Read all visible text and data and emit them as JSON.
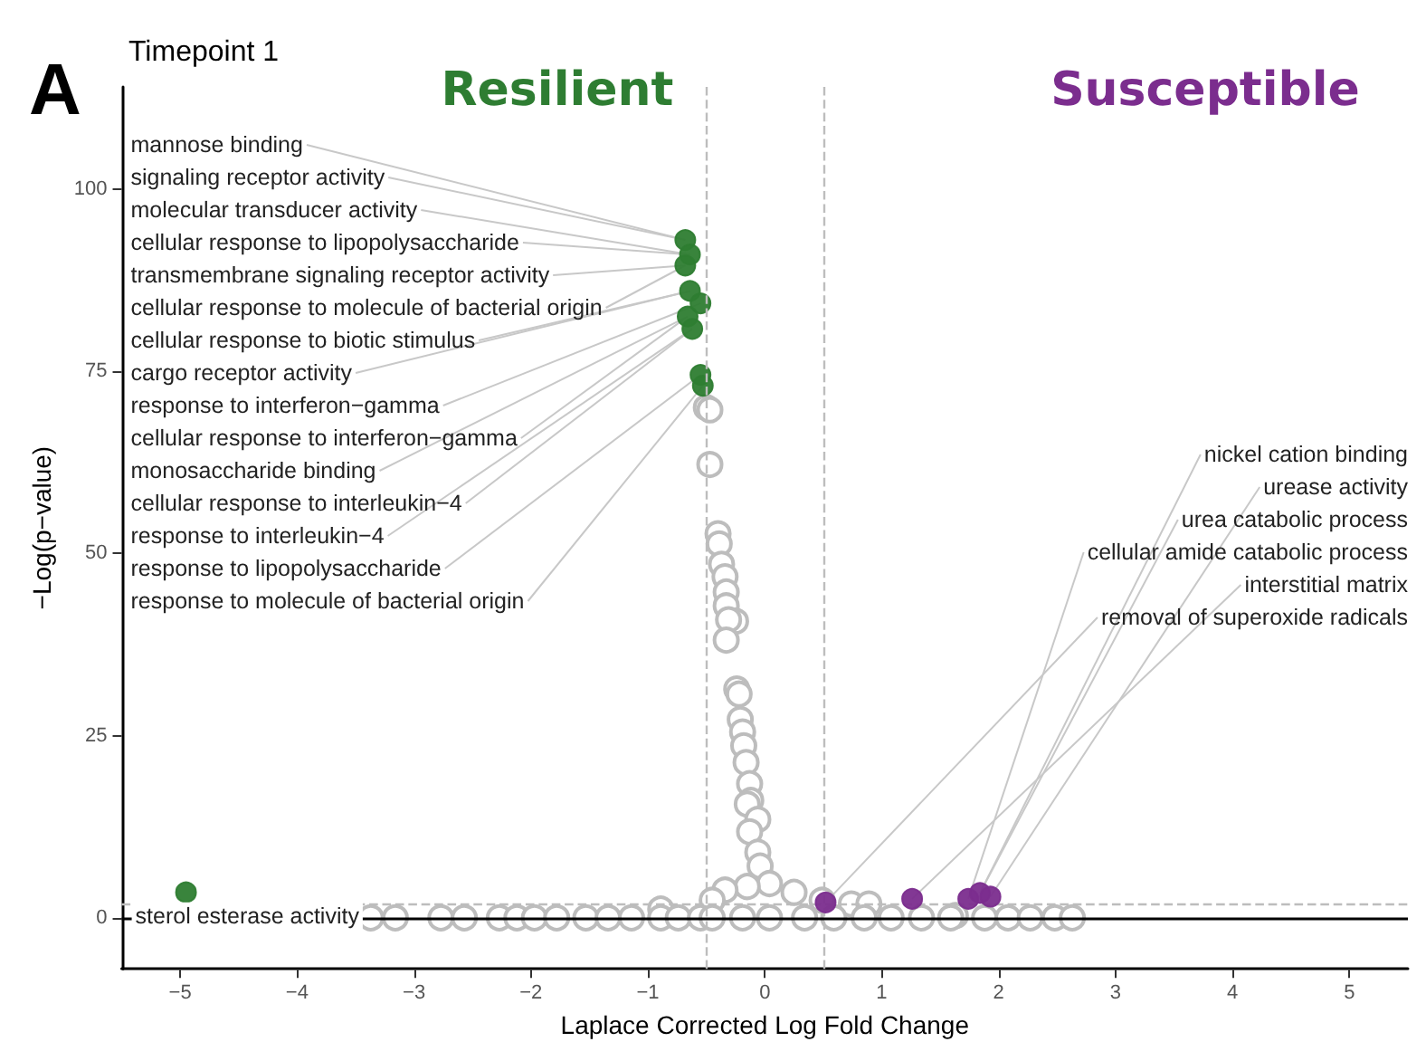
{
  "chart_data": {
    "type": "scatter",
    "title": "Timepoint 1",
    "xlabel": "Laplace Corrected Log Fold Change",
    "ylabel": "−Log(p−value)",
    "xlim": [
      -5.5,
      5.5
    ],
    "xticks": [
      -5,
      -4,
      -3,
      -2,
      -1,
      0,
      1,
      2,
      3,
      4,
      5
    ],
    "ylim": [
      -7,
      114
    ],
    "yticks": [
      0,
      25,
      50,
      75,
      100
    ],
    "grid": false,
    "legend": false,
    "marker": "circle",
    "series": [
      {
        "color": "#bdbdbd",
        "x": [
          -0.5,
          -0.47,
          -0.47,
          -0.4,
          -0.39,
          -0.37,
          -0.34,
          -0.33,
          -0.33,
          -0.25,
          -0.31,
          -0.33,
          -0.24,
          -0.22,
          -0.21,
          -0.19,
          -0.18,
          -0.16,
          -0.13,
          -0.12,
          -0.15,
          -0.06,
          -0.13,
          -0.06,
          -0.04,
          0.04,
          -0.15,
          -0.34,
          0.25,
          -0.45,
          0.49,
          -0.89,
          0.74,
          0.89,
          1.63,
          -3.37,
          -3.16,
          -2.77,
          -2.57,
          -2.27,
          -2.12,
          -1.97,
          -1.78,
          -1.53,
          -1.34,
          -1.14,
          -0.89,
          -0.74,
          -0.55,
          -0.45,
          -0.19,
          0.04,
          0.34,
          0.59,
          0.85,
          1.08,
          1.34,
          1.59,
          1.88,
          2.08,
          2.27,
          2.48,
          2.63
        ],
        "values": [
          70,
          69.7,
          62.2,
          52.7,
          51.3,
          48.5,
          46.8,
          44.7,
          42.8,
          40.7,
          40.9,
          38.1,
          31.4,
          30.7,
          27.2,
          25.5,
          23.6,
          21.3,
          18.4,
          16.1,
          15.6,
          13.5,
          11.8,
          9,
          7.1,
          4.7,
          4.3,
          3.8,
          3.5,
          2.4,
          2.4,
          1.2,
          1.9,
          1.9,
          0.3,
          0,
          0,
          0,
          0,
          0,
          0,
          0,
          0,
          0,
          0,
          0,
          0,
          0,
          0,
          0,
          0,
          0,
          0,
          0,
          0,
          0,
          0,
          0,
          0,
          0,
          0,
          0,
          0
        ]
      },
      {
        "name": "Resilient",
        "color": "#2e7d32",
        "x": [
          -0.68,
          -0.64,
          -0.68,
          -0.64,
          -0.55,
          -0.66,
          -0.62,
          -0.55,
          -0.53,
          -4.95
        ],
        "values": [
          93,
          91,
          89.5,
          86,
          84.3,
          82.5,
          80.8,
          74.5,
          73,
          3.5
        ]
      },
      {
        "name": "Susceptible",
        "color": "#7b2d8e",
        "x": [
          0.52,
          1.26,
          1.74,
          1.84,
          1.93
        ],
        "values": [
          2.1,
          2.6,
          2.6,
          3.4,
          2.9
        ]
      }
    ],
    "ref_lines": [
      {
        "axis": "x",
        "value": -0.5,
        "line_style": "dashed",
        "color": "#bdbdbd"
      },
      {
        "axis": "x",
        "value": 0.5,
        "line_style": "dashed",
        "color": "#bdbdbd"
      },
      {
        "axis": "y",
        "value": 0,
        "line_style": "solid",
        "color": "#000000"
      },
      {
        "axis": "y",
        "value": 2,
        "line_style": "dashed",
        "color": "#bdbdbd"
      }
    ],
    "annotations": [
      "A",
      {
        "text": "mannose binding",
        "x": -0.68,
        "y": 93
      },
      {
        "text": "signaling receptor activity",
        "x": -0.68,
        "y": 93
      },
      {
        "text": "molecular transducer activity",
        "x": -0.64,
        "y": 91
      },
      {
        "text": "cellular response to lipopolysaccharide",
        "x": -0.64,
        "y": 91
      },
      {
        "text": "transmembrane signaling receptor activity",
        "x": -0.68,
        "y": 89.5
      },
      {
        "text": "cellular response to molecule of bacterial origin",
        "x": -0.68,
        "y": 89.5
      },
      {
        "text": "cellular response to biotic stimulus",
        "x": -0.64,
        "y": 86
      },
      {
        "text": "cargo receptor activity",
        "x": -0.64,
        "y": 86
      },
      {
        "text": "response to interferon−gamma",
        "x": -0.55,
        "y": 84.3
      },
      {
        "text": "cellular response to interferon−gamma",
        "x": -0.66,
        "y": 82.5
      },
      {
        "text": "monosaccharide binding",
        "x": -0.66,
        "y": 82.5
      },
      {
        "text": "cellular response to interleukin−4",
        "x": -0.62,
        "y": 80.8
      },
      {
        "text": "response to interleukin−4",
        "x": -0.62,
        "y": 80.8
      },
      {
        "text": "response to lipopolysaccharide",
        "x": -0.55,
        "y": 74.5
      },
      {
        "text": "response to molecule of bacterial origin",
        "x": -0.53,
        "y": 73
      },
      {
        "text": "sterol esterase activity",
        "x": -4.95,
        "y": 3.5
      },
      {
        "text": "nickel cation binding",
        "x": 1.84,
        "y": 3.4
      },
      {
        "text": "urease activity",
        "x": 1.93,
        "y": 2.9
      },
      {
        "text": "urea catabolic process",
        "x": 1.84,
        "y": 3.4
      },
      {
        "text": "cellular amide catabolic process",
        "x": 1.74,
        "y": 2.6
      },
      {
        "text": "interstitial matrix",
        "x": 1.26,
        "y": 2.6
      },
      {
        "text": "removal of superoxide radicals",
        "x": 0.52,
        "y": 2.1
      }
    ]
  }
}
